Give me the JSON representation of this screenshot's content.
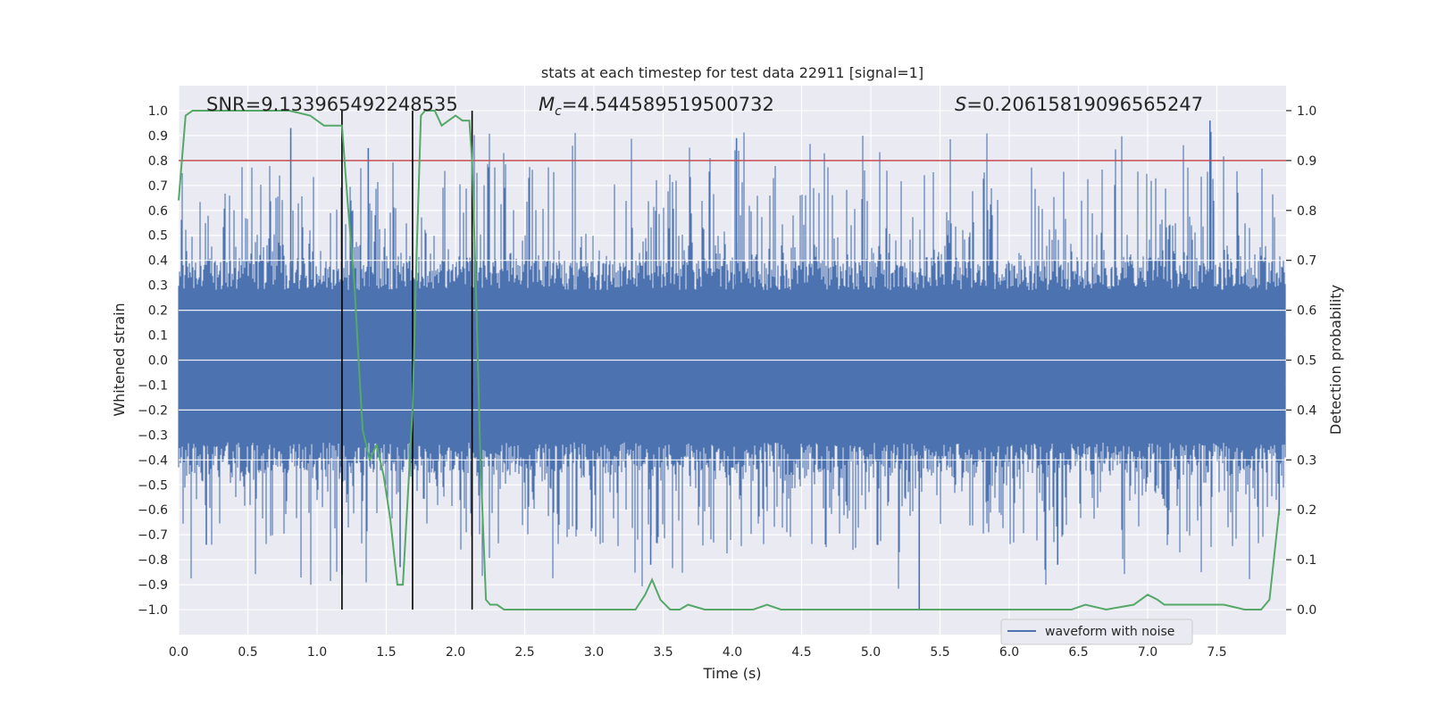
{
  "chart_data": {
    "type": "line",
    "title": "stats at each timestep for test data 22911 [signal=1]",
    "xlabel": "Time (s)",
    "ylabel": "Whitened strain",
    "y2label": "Detection probability",
    "xlim": [
      0,
      8
    ],
    "ylim": [
      -1.1,
      1.1
    ],
    "y2lim": [
      -0.05,
      1.05
    ],
    "xticks": [
      0.0,
      0.5,
      1.0,
      1.5,
      2.0,
      2.5,
      3.0,
      3.5,
      4.0,
      4.5,
      5.0,
      5.5,
      6.0,
      6.5,
      7.0,
      7.5
    ],
    "xtick_labels": [
      "0.0",
      "0.5",
      "1.0",
      "1.5",
      "2.0",
      "2.5",
      "3.0",
      "3.5",
      "4.0",
      "4.5",
      "5.0",
      "5.5",
      "6.0",
      "6.5",
      "7.0",
      "7.5"
    ],
    "yticks": [
      -1.0,
      -0.9,
      -0.8,
      -0.7,
      -0.6,
      -0.5,
      -0.4,
      -0.3,
      -0.2,
      -0.1,
      0.0,
      0.1,
      0.2,
      0.3,
      0.4,
      0.5,
      0.6,
      0.7,
      0.8,
      0.9,
      1.0
    ],
    "ytick_labels": [
      "−1.0",
      "−0.9",
      "−0.8",
      "−0.7",
      "−0.6",
      "−0.5",
      "−0.4",
      "−0.3",
      "−0.2",
      "−0.1",
      "0.0",
      "0.1",
      "0.2",
      "0.3",
      "0.4",
      "0.5",
      "0.6",
      "0.7",
      "0.8",
      "0.9",
      "1.0"
    ],
    "y2ticks": [
      0.0,
      0.1,
      0.2,
      0.3,
      0.4,
      0.5,
      0.6,
      0.7,
      0.8,
      0.9,
      1.0
    ],
    "y2tick_labels": [
      "0.0",
      "0.1",
      "0.2",
      "0.3",
      "0.4",
      "0.5",
      "0.6",
      "0.7",
      "0.8",
      "0.9",
      "1.0"
    ],
    "grid": true,
    "annotations": {
      "snr": "SNR=9.133965492248535",
      "mc_symbol": "M",
      "mc_sub": "c",
      "mc_value": "=4.544589519500732",
      "s_symbol": "S",
      "s_value": "=0.20615819096565247"
    },
    "threshold_y2": 0.9,
    "event_markers_x": [
      1.18,
      1.69,
      2.12
    ],
    "legend": {
      "placement": "lower-right",
      "entries": [
        "waveform with noise"
      ]
    },
    "series": [
      {
        "name": "waveform with noise",
        "axis": "left",
        "color": "#4c72b0",
        "envelope": "dense noise between about −0.42 and 0.37 with spikes to about ±0.95"
      },
      {
        "axis": "right",
        "color": "#55a868",
        "x": [
          0.0,
          0.05,
          0.1,
          0.2,
          0.4,
          0.6,
          0.8,
          0.95,
          1.0,
          1.05,
          1.1,
          1.18,
          1.22,
          1.27,
          1.3,
          1.33,
          1.38,
          1.43,
          1.48,
          1.53,
          1.58,
          1.62,
          1.66,
          1.69,
          1.72,
          1.75,
          1.78,
          1.85,
          1.9,
          1.95,
          2.0,
          2.05,
          2.1,
          2.12,
          2.15,
          2.18,
          2.22,
          2.25,
          2.3,
          2.35,
          2.45,
          2.6,
          2.75,
          2.9,
          3.1,
          3.3,
          3.37,
          3.42,
          3.48,
          3.55,
          3.62,
          3.68,
          3.8,
          4.0,
          4.15,
          4.25,
          4.35,
          4.6,
          4.8,
          5.0,
          5.2,
          5.35,
          5.45,
          5.6,
          5.9,
          6.2,
          6.3,
          6.45,
          6.55,
          6.7,
          6.9,
          6.95,
          7.0,
          7.07,
          7.12,
          7.2,
          7.3,
          7.4,
          7.55,
          7.7,
          7.82,
          7.88,
          7.95
        ],
        "values": [
          0.82,
          0.99,
          1.0,
          1.0,
          1.0,
          1.0,
          1.0,
          0.99,
          0.98,
          0.97,
          0.97,
          0.97,
          0.82,
          0.65,
          0.5,
          0.36,
          0.3,
          0.33,
          0.27,
          0.18,
          0.05,
          0.05,
          0.25,
          0.4,
          0.72,
          0.99,
          1.0,
          1.0,
          0.97,
          0.98,
          0.99,
          0.98,
          0.98,
          0.9,
          0.62,
          0.3,
          0.02,
          0.01,
          0.01,
          0.0,
          0.0,
          0.0,
          0.0,
          0.0,
          0.0,
          0.0,
          0.03,
          0.06,
          0.02,
          0.0,
          0.0,
          0.01,
          0.0,
          0.0,
          0.0,
          0.01,
          0.0,
          0.0,
          0.0,
          0.0,
          0.0,
          0.0,
          0.0,
          0.0,
          0.0,
          0.0,
          0.0,
          0.0,
          0.01,
          0.0,
          0.01,
          0.02,
          0.03,
          0.02,
          0.01,
          0.01,
          0.01,
          0.01,
          0.01,
          0.0,
          0.0,
          0.02,
          0.2
        ]
      }
    ]
  }
}
